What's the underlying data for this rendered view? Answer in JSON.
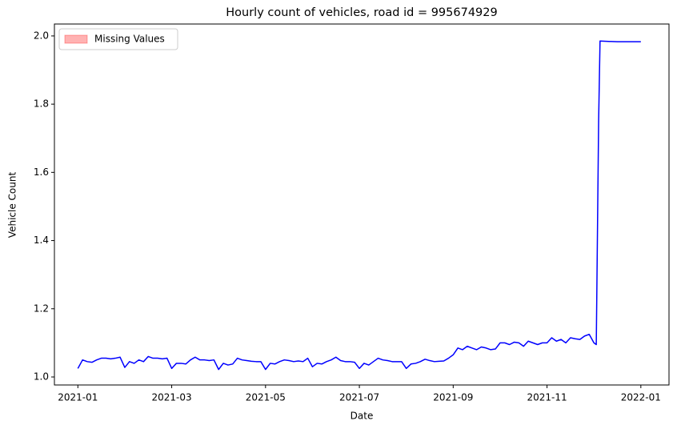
{
  "chart_data": {
    "type": "line",
    "title": "Hourly count of vehicles, road id = 995674929",
    "x_label": "Date",
    "y_label": "Vehicle Count",
    "x": [
      0,
      0.1,
      0.2,
      0.3,
      0.4,
      0.5,
      0.6,
      0.7,
      0.8,
      0.9,
      1,
      1.1,
      1.2,
      1.3,
      1.4,
      1.5,
      1.6,
      1.7,
      1.8,
      1.9,
      2,
      2.1,
      2.2,
      2.3,
      2.4,
      2.5,
      2.6,
      2.7,
      2.8,
      2.9,
      3,
      3.1,
      3.2,
      3.3,
      3.4,
      3.5,
      3.6,
      3.7,
      3.8,
      3.9,
      4,
      4.1,
      4.2,
      4.3,
      4.4,
      4.5,
      4.6,
      4.7,
      4.8,
      4.9,
      5,
      5.1,
      5.2,
      5.3,
      5.4,
      5.5,
      5.6,
      5.7,
      5.8,
      5.9,
      6,
      6.1,
      6.2,
      6.3,
      6.4,
      6.5,
      6.6,
      6.7,
      6.8,
      6.9,
      7,
      7.1,
      7.2,
      7.3,
      7.4,
      7.5,
      7.6,
      7.7,
      7.8,
      7.9,
      8,
      8.1,
      8.2,
      8.3,
      8.4,
      8.5,
      8.6,
      8.7,
      8.8,
      8.9,
      9,
      9.1,
      9.2,
      9.3,
      9.4,
      9.5,
      9.6,
      9.7,
      9.8,
      9.9,
      10,
      10.1,
      10.2,
      10.3,
      10.4,
      10.5,
      10.6,
      10.7,
      10.8,
      10.9,
      11,
      11.05,
      11.1,
      11.13,
      11.5,
      12
    ],
    "series": [
      {
        "name": "Vehicle Count",
        "color": "#0000ff",
        "values": [
          1.025,
          1.05,
          1.045,
          1.043,
          1.05,
          1.055,
          1.055,
          1.053,
          1.055,
          1.058,
          1.028,
          1.045,
          1.04,
          1.05,
          1.045,
          1.06,
          1.055,
          1.055,
          1.053,
          1.055,
          1.025,
          1.04,
          1.04,
          1.038,
          1.05,
          1.058,
          1.05,
          1.05,
          1.048,
          1.05,
          1.022,
          1.04,
          1.035,
          1.038,
          1.055,
          1.05,
          1.048,
          1.046,
          1.045,
          1.045,
          1.022,
          1.04,
          1.038,
          1.045,
          1.05,
          1.048,
          1.045,
          1.047,
          1.045,
          1.055,
          1.03,
          1.04,
          1.038,
          1.045,
          1.05,
          1.058,
          1.048,
          1.045,
          1.045,
          1.043,
          1.025,
          1.04,
          1.035,
          1.045,
          1.055,
          1.05,
          1.048,
          1.045,
          1.045,
          1.045,
          1.025,
          1.038,
          1.04,
          1.045,
          1.052,
          1.048,
          1.045,
          1.046,
          1.047,
          1.055,
          1.065,
          1.085,
          1.08,
          1.09,
          1.085,
          1.08,
          1.088,
          1.085,
          1.08,
          1.082,
          1.1,
          1.1,
          1.095,
          1.102,
          1.1,
          1.09,
          1.105,
          1.1,
          1.095,
          1.1,
          1.1,
          1.115,
          1.105,
          1.11,
          1.1,
          1.115,
          1.112,
          1.11,
          1.12,
          1.125,
          1.1,
          1.095,
          1.75,
          1.985,
          1.983,
          1.983
        ]
      }
    ],
    "legend_patches": [
      {
        "name": "Missing Values",
        "color": "#ff0000",
        "alpha": 0.3
      }
    ],
    "legend_position": "upper-left",
    "xlim": [
      -0.5,
      12.6
    ],
    "xticks": [
      {
        "value": 0,
        "label": "2021-01"
      },
      {
        "value": 2,
        "label": "2021-03"
      },
      {
        "value": 4,
        "label": "2021-05"
      },
      {
        "value": 6,
        "label": "2021-07"
      },
      {
        "value": 8,
        "label": "2021-09"
      },
      {
        "value": 10,
        "label": "2021-11"
      },
      {
        "value": 12,
        "label": "2022-01"
      }
    ],
    "ylim": [
      0.9765,
      2.035
    ],
    "yticks": [
      {
        "value": 1,
        "label": "1.0"
      },
      1.2,
      1.4,
      1.6,
      1.8,
      {
        "value": 2,
        "label": "2.0"
      }
    ]
  }
}
